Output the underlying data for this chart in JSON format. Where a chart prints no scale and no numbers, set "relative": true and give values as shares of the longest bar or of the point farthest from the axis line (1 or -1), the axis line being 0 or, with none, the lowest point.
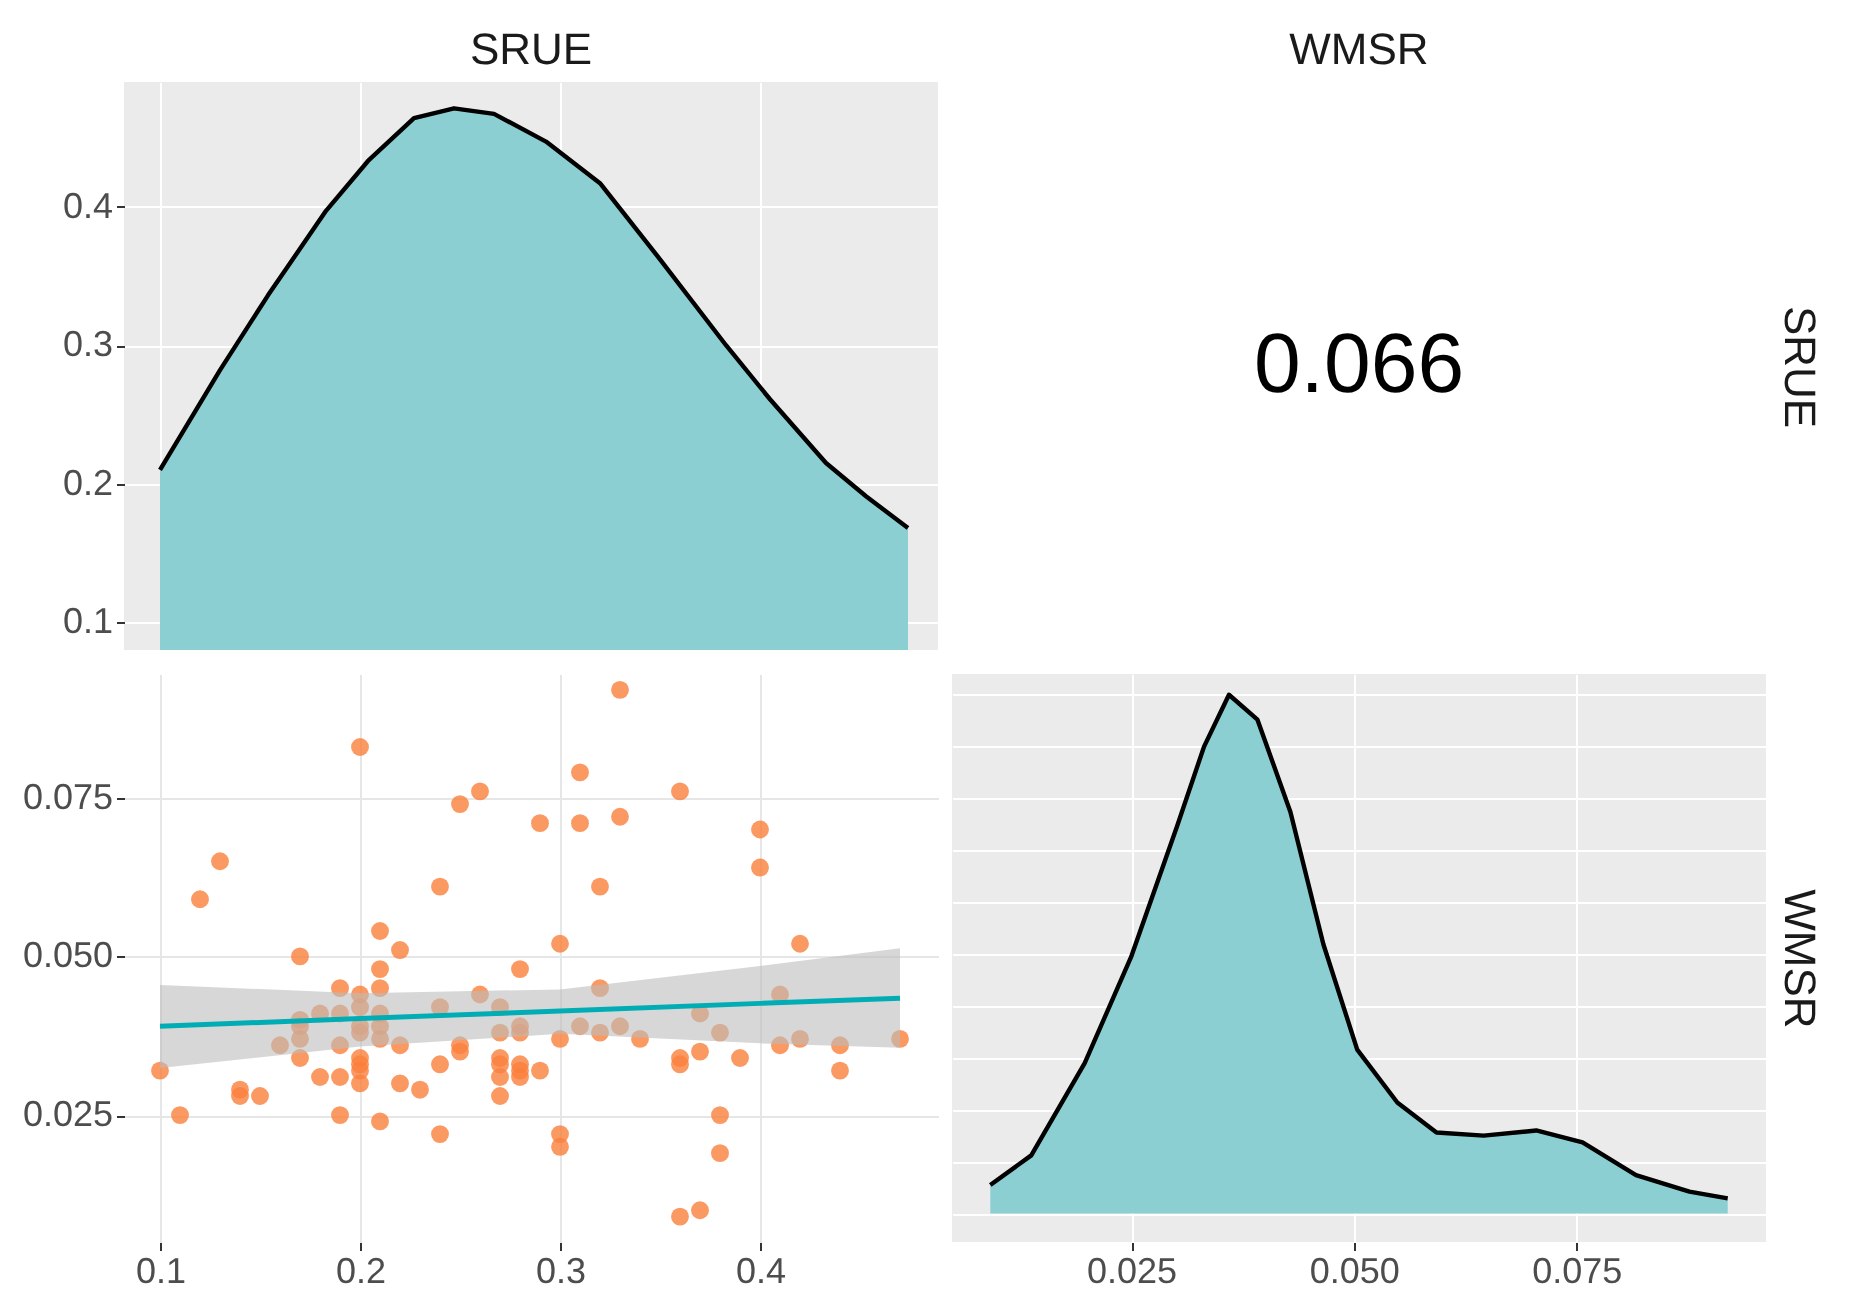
{
  "chart_data": [
    {
      "type": "area",
      "title": "SRUE",
      "x": [
        0.1,
        0.13,
        0.154,
        0.183,
        0.204,
        0.227,
        0.247,
        0.267,
        0.293,
        0.32,
        0.35,
        0.383,
        0.405,
        0.433,
        0.453,
        0.474
      ],
      "series": [
        {
          "color": "#8ccfd3",
          "values": [
            0.21,
            0.282,
            0.336,
            0.397,
            0.433,
            0.464,
            0.471,
            0.467,
            0.447,
            0.417,
            0.362,
            0.3,
            0.261,
            0.215,
            0.191,
            0.168
          ]
        }
      ],
      "xlim": [
        0.082,
        0.489
      ],
      "ylim": [
        0.08,
        0.49
      ],
      "xticks": [
        0.1,
        0.2,
        0.3,
        0.4
      ],
      "yticks": [
        0.1,
        0.2,
        0.3,
        0.4
      ],
      "grid": true,
      "tick_labels": "y"
    },
    {
      "type": "other",
      "title": "WMSR",
      "ylabel": "SRUE",
      "annotations": [
        "0.066"
      ]
    },
    {
      "type": "scatter",
      "x": [
        0.1,
        0.11,
        0.12,
        0.13,
        0.14,
        0.14,
        0.15,
        0.16,
        0.17,
        0.17,
        0.17,
        0.17,
        0.17,
        0.18,
        0.18,
        0.19,
        0.19,
        0.19,
        0.19,
        0.19,
        0.2,
        0.2,
        0.2,
        0.2,
        0.2,
        0.2,
        0.2,
        0.2,
        0.2,
        0.21,
        0.21,
        0.21,
        0.21,
        0.21,
        0.21,
        0.21,
        0.22,
        0.22,
        0.22,
        0.23,
        0.24,
        0.24,
        0.24,
        0.24,
        0.25,
        0.25,
        0.25,
        0.26,
        0.26,
        0.27,
        0.27,
        0.27,
        0.27,
        0.27,
        0.27,
        0.28,
        0.28,
        0.28,
        0.28,
        0.28,
        0.28,
        0.29,
        0.29,
        0.3,
        0.3,
        0.3,
        0.3,
        0.31,
        0.31,
        0.31,
        0.32,
        0.32,
        0.32,
        0.33,
        0.33,
        0.33,
        0.34,
        0.36,
        0.36,
        0.36,
        0.36,
        0.37,
        0.37,
        0.37,
        0.38,
        0.38,
        0.38,
        0.39,
        0.4,
        0.4,
        0.41,
        0.41,
        0.42,
        0.42,
        0.44,
        0.44,
        0.47
      ],
      "series": [
        {
          "type": "scatter",
          "color": "#fa7f3c",
          "values": [
            0.032,
            0.025,
            0.059,
            0.065,
            0.029,
            0.028,
            0.028,
            0.036,
            0.05,
            0.04,
            0.039,
            0.037,
            0.034,
            0.041,
            0.031,
            0.045,
            0.041,
            0.036,
            0.031,
            0.025,
            0.083,
            0.044,
            0.042,
            0.039,
            0.038,
            0.034,
            0.033,
            0.032,
            0.03,
            0.054,
            0.048,
            0.045,
            0.041,
            0.039,
            0.037,
            0.024,
            0.051,
            0.036,
            0.03,
            0.029,
            0.061,
            0.042,
            0.033,
            0.022,
            0.074,
            0.036,
            0.035,
            0.076,
            0.044,
            0.042,
            0.038,
            0.034,
            0.033,
            0.031,
            0.028,
            0.048,
            0.039,
            0.038,
            0.033,
            0.032,
            0.031,
            0.071,
            0.032,
            0.052,
            0.037,
            0.022,
            0.02,
            0.079,
            0.071,
            0.039,
            0.061,
            0.045,
            0.038,
            0.092,
            0.072,
            0.039,
            0.037,
            0.076,
            0.034,
            0.033,
            0.009,
            0.041,
            0.035,
            0.01,
            0.038,
            0.025,
            0.019,
            0.034,
            0.07,
            0.064,
            0.044,
            0.036,
            0.052,
            0.037,
            0.036,
            0.032,
            0.037
          ]
        },
        {
          "type": "line",
          "color": "#00adb5",
          "x": [
            0.1,
            0.2,
            0.3,
            0.4,
            0.47
          ],
          "values": [
            0.039,
            0.0402,
            0.0414,
            0.0426,
            0.0434
          ],
          "lower": [
            0.0324,
            0.0358,
            0.0378,
            0.0363,
            0.0356
          ],
          "upper": [
            0.0455,
            0.0442,
            0.0448,
            0.0485,
            0.0513
          ]
        }
      ],
      "xlim": [
        0.082,
        0.489
      ],
      "ylim": [
        0.005,
        0.0945
      ],
      "xticks": [
        0.1,
        0.2,
        0.3,
        0.4
      ],
      "yticks": [
        {
          "value": 0.025,
          "label": "0.025"
        },
        {
          "value": 0.05,
          "label": "0.050"
        },
        {
          "value": 0.075,
          "label": "0.075"
        }
      ],
      "grid": true
    },
    {
      "type": "area",
      "ylabel": "WMSR",
      "relative": true,
      "x": [
        0.0092,
        0.0138,
        0.0198,
        0.025,
        0.0302,
        0.0332,
        0.036,
        0.0392,
        0.0429,
        0.0466,
        0.0504,
        0.0549,
        0.0593,
        0.0646,
        0.0705,
        0.0757,
        0.0817,
        0.0877,
        0.092
      ],
      "series": [
        {
          "color": "#8ccfd3",
          "values": [
            0.055,
            0.112,
            0.29,
            0.494,
            0.748,
            0.9,
            1.0,
            0.952,
            0.774,
            0.519,
            0.316,
            0.214,
            0.156,
            0.15,
            0.16,
            0.137,
            0.074,
            0.042,
            0.029
          ]
        }
      ],
      "xlim": [
        0.0049,
        0.0963
      ],
      "xticks": [
        {
          "value": 0.025,
          "label": "0.025"
        },
        {
          "value": 0.05,
          "label": "0.050"
        },
        {
          "value": 0.075,
          "label": "0.075"
        }
      ],
      "grid": true,
      "tick_labels": "x"
    }
  ]
}
